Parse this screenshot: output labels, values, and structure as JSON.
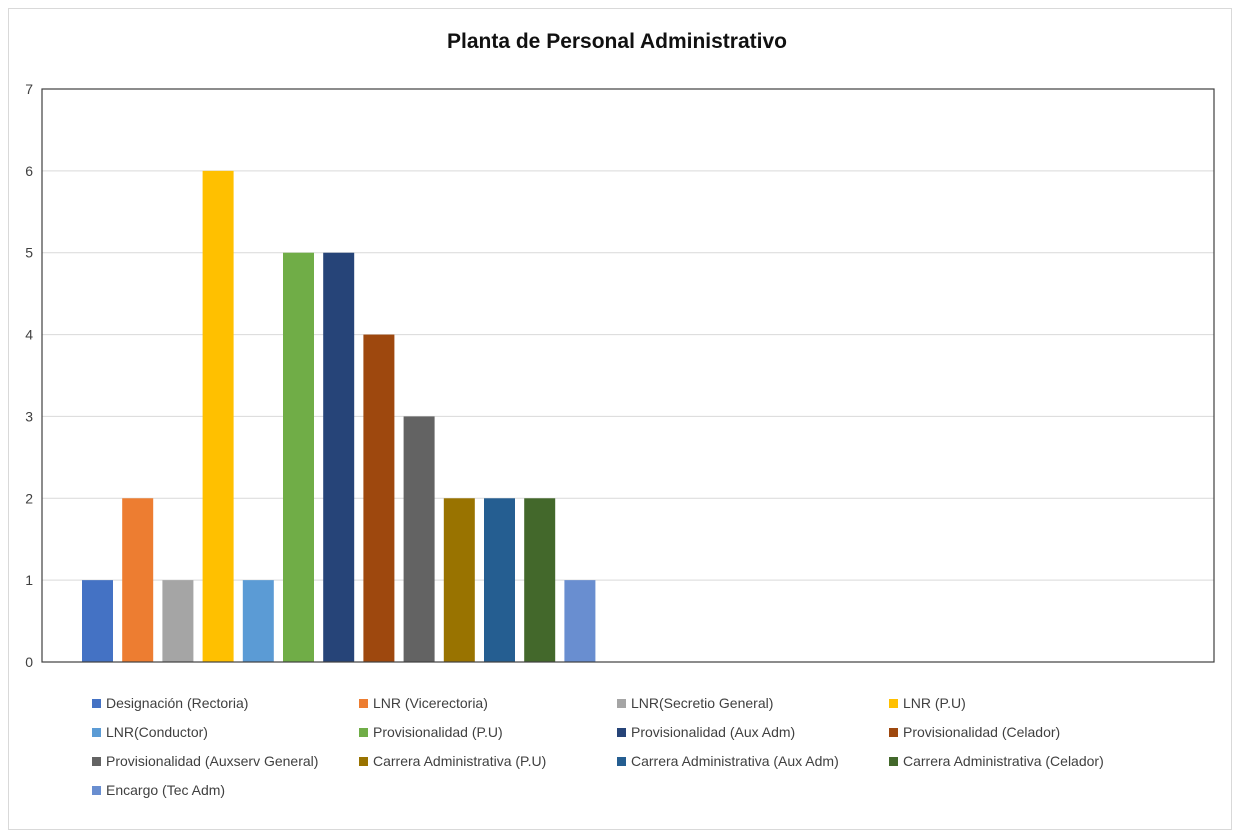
{
  "chart_data": {
    "type": "bar",
    "title": "Planta de Personal Administrativo",
    "xlabel": "",
    "ylabel": "",
    "ylim": [
      0,
      7
    ],
    "yticks": [
      0,
      1,
      2,
      3,
      4,
      5,
      6,
      7
    ],
    "grid": true,
    "legend_position": "bottom",
    "series": [
      {
        "name": "Designación (Rectoria)",
        "value": 1,
        "color": "#4472c4"
      },
      {
        "name": "LNR (Vicerectoria)",
        "value": 2,
        "color": "#ed7d31"
      },
      {
        "name": "LNR(Secretio General)",
        "value": 1,
        "color": "#a5a5a5"
      },
      {
        "name": "LNR (P.U)",
        "value": 6,
        "color": "#ffc000"
      },
      {
        "name": "LNR(Conductor)",
        "value": 1,
        "color": "#5b9bd5"
      },
      {
        "name": "Provisionalidad (P.U)",
        "value": 5,
        "color": "#70ad47"
      },
      {
        "name": "Provisionalidad (Aux Adm)",
        "value": 5,
        "color": "#264478"
      },
      {
        "name": "Provisionalidad (Celador)",
        "value": 4,
        "color": "#9e480e"
      },
      {
        "name": "Provisionalidad (Auxserv General)",
        "value": 3,
        "color": "#636363"
      },
      {
        "name": "Carrera Administrativa (P.U)",
        "value": 2,
        "color": "#997300"
      },
      {
        "name": "Carrera Administrativa (Aux Adm)",
        "value": 2,
        "color": "#255e91"
      },
      {
        "name": "Carrera Administrativa (Celador)",
        "value": 2,
        "color": "#43682b"
      },
      {
        "name": "Encargo (Tec Adm)",
        "value": 1,
        "color": "#698ed0"
      }
    ]
  }
}
